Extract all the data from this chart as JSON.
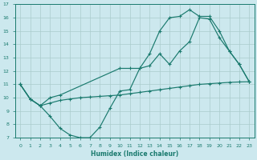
{
  "xlabel": "Humidex (Indice chaleur)",
  "bg_color": "#cce8ee",
  "grid_color": "#aacccc",
  "line_color": "#1a7a6e",
  "xlim": [
    -0.5,
    23.5
  ],
  "ylim": [
    7,
    17
  ],
  "xticks": [
    0,
    1,
    2,
    3,
    4,
    5,
    6,
    7,
    8,
    9,
    10,
    11,
    12,
    13,
    14,
    15,
    16,
    17,
    18,
    19,
    20,
    21,
    22,
    23
  ],
  "yticks": [
    7,
    8,
    9,
    10,
    11,
    12,
    13,
    14,
    15,
    16,
    17
  ],
  "curve1_x": [
    0,
    1,
    2,
    3,
    4,
    5,
    6,
    7,
    8,
    9,
    10,
    11,
    12,
    13,
    14,
    15,
    16,
    17,
    18,
    19,
    20,
    21,
    22,
    23
  ],
  "curve1_y": [
    11,
    9.9,
    9.4,
    8.6,
    7.7,
    7.2,
    7.0,
    7.0,
    7.8,
    9.2,
    10.5,
    10.6,
    12.2,
    12.4,
    13.3,
    12.5,
    13.5,
    14.2,
    16.0,
    15.9,
    14.5,
    13.5,
    12.5,
    11.2
  ],
  "curve2_x": [
    0,
    1,
    2,
    3,
    4,
    10,
    11,
    12,
    13,
    14,
    15,
    16,
    17,
    18,
    19,
    20,
    21,
    22,
    23
  ],
  "curve2_y": [
    11,
    9.9,
    9.4,
    10.0,
    10.2,
    12.2,
    12.2,
    12.2,
    13.3,
    15.0,
    16.0,
    16.1,
    16.6,
    16.1,
    16.1,
    15.0,
    13.5,
    12.5,
    11.2
  ],
  "curve3_x": [
    0,
    1,
    2,
    3,
    4,
    5,
    6,
    7,
    8,
    9,
    10,
    11,
    12,
    13,
    14,
    15,
    16,
    17,
    18,
    19,
    20,
    21,
    22,
    23
  ],
  "curve3_y": [
    11,
    9.9,
    9.4,
    9.6,
    9.8,
    9.9,
    10.0,
    10.05,
    10.1,
    10.15,
    10.2,
    10.3,
    10.4,
    10.5,
    10.6,
    10.7,
    10.8,
    10.9,
    11.0,
    11.05,
    11.1,
    11.15,
    11.18,
    11.2
  ]
}
